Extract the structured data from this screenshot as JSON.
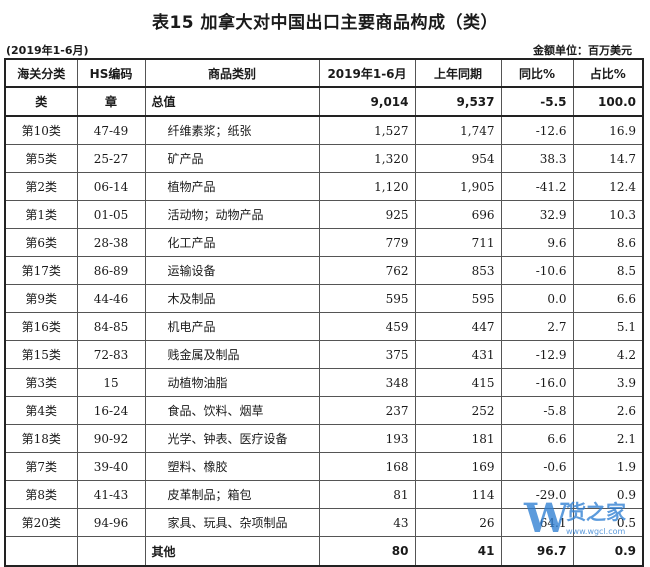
{
  "header": {
    "title": "表15 加拿大对中国出口主要商品构成（类）",
    "period": "(2019年1-6月)",
    "unit": "金额单位：百万美元"
  },
  "columns": [
    "海关分类",
    "HS编码",
    "商品类别",
    "2019年1-6月",
    "上年同期",
    "同比%",
    "占比%"
  ],
  "total_row": {
    "cls": "类",
    "hs": "章",
    "name": "总值",
    "v2019": "9,014",
    "prev": "9,537",
    "yoy": "-5.5",
    "share": "100.0"
  },
  "rows": [
    {
      "cls": "第10类",
      "hs": "47-49",
      "name": "纤维素浆；纸张",
      "v2019": "1,527",
      "prev": "1,747",
      "yoy": "-12.6",
      "share": "16.9"
    },
    {
      "cls": "第5类",
      "hs": "25-27",
      "name": "矿产品",
      "v2019": "1,320",
      "prev": "954",
      "yoy": "38.3",
      "share": "14.7"
    },
    {
      "cls": "第2类",
      "hs": "06-14",
      "name": "植物产品",
      "v2019": "1,120",
      "prev": "1,905",
      "yoy": "-41.2",
      "share": "12.4"
    },
    {
      "cls": "第1类",
      "hs": "01-05",
      "name": "活动物；动物产品",
      "v2019": "925",
      "prev": "696",
      "yoy": "32.9",
      "share": "10.3"
    },
    {
      "cls": "第6类",
      "hs": "28-38",
      "name": "化工产品",
      "v2019": "779",
      "prev": "711",
      "yoy": "9.6",
      "share": "8.6"
    },
    {
      "cls": "第17类",
      "hs": "86-89",
      "name": "运输设备",
      "v2019": "762",
      "prev": "853",
      "yoy": "-10.6",
      "share": "8.5"
    },
    {
      "cls": "第9类",
      "hs": "44-46",
      "name": "木及制品",
      "v2019": "595",
      "prev": "595",
      "yoy": "0.0",
      "share": "6.6"
    },
    {
      "cls": "第16类",
      "hs": "84-85",
      "name": "机电产品",
      "v2019": "459",
      "prev": "447",
      "yoy": "2.7",
      "share": "5.1"
    },
    {
      "cls": "第15类",
      "hs": "72-83",
      "name": "贱金属及制品",
      "v2019": "375",
      "prev": "431",
      "yoy": "-12.9",
      "share": "4.2"
    },
    {
      "cls": "第3类",
      "hs": "15",
      "name": "动植物油脂",
      "v2019": "348",
      "prev": "415",
      "yoy": "-16.0",
      "share": "3.9"
    },
    {
      "cls": "第4类",
      "hs": "16-24",
      "name": "食品、饮料、烟草",
      "v2019": "237",
      "prev": "252",
      "yoy": "-5.8",
      "share": "2.6"
    },
    {
      "cls": "第18类",
      "hs": "90-92",
      "name": "光学、钟表、医疗设备",
      "v2019": "193",
      "prev": "181",
      "yoy": "6.6",
      "share": "2.1"
    },
    {
      "cls": "第7类",
      "hs": "39-40",
      "name": "塑料、橡胶",
      "v2019": "168",
      "prev": "169",
      "yoy": "-0.6",
      "share": "1.9"
    },
    {
      "cls": "第8类",
      "hs": "41-43",
      "name": "皮革制品；箱包",
      "v2019": "81",
      "prev": "114",
      "yoy": "-29.0",
      "share": "0.9"
    },
    {
      "cls": "第20类",
      "hs": "94-96",
      "name": "家具、玩具、杂项制品",
      "v2019": "43",
      "prev": "26",
      "yoy": "64.1",
      "share": "0.5"
    }
  ],
  "other_row": {
    "cls": "",
    "hs": "",
    "name": "其他",
    "v2019": "80",
    "prev": "41",
    "yoy": "96.7",
    "share": "0.9"
  },
  "watermark": {
    "brand": "W",
    "text": "货之家",
    "url": "www.wgcl.com",
    "color": "#2f7fd3"
  }
}
